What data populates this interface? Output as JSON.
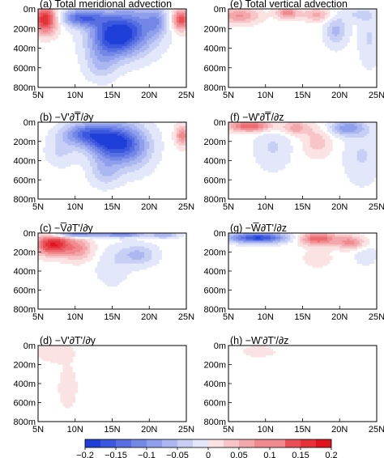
{
  "chart_data": {
    "type": "heatmap",
    "x_ticks": [
      "5N",
      "10N",
      "15N",
      "20N",
      "25N"
    ],
    "y_ticks": [
      "0m",
      "200m",
      "400m",
      "600m",
      "800m"
    ],
    "xlim": [
      5,
      25
    ],
    "ylim": [
      0,
      800
    ],
    "colorbar": {
      "ticks": [
        "-0.2",
        "-0.15",
        "-0.1",
        "-0.05",
        "0",
        "0.05",
        "0.1",
        "0.15",
        "0.2"
      ],
      "range": [
        -0.2,
        0.2
      ],
      "negative_color": "#1f3fd8",
      "positive_color": "#e0141e"
    },
    "panels": [
      {
        "title": "(a) Total meridional advection",
        "blobs": [
          {
            "lat": 15,
            "depth": 280,
            "rlat": 3.2,
            "rdep": 200,
            "amp": -0.17
          },
          {
            "lat": 11,
            "depth": 90,
            "rlat": 3.0,
            "rdep": 90,
            "amp": -0.15
          },
          {
            "lat": 18,
            "depth": 200,
            "rlat": 3.5,
            "rdep": 260,
            "amp": -0.11
          },
          {
            "lat": 21,
            "depth": 120,
            "rlat": 1.4,
            "rdep": 140,
            "amp": -0.07
          },
          {
            "lat": 13.5,
            "depth": 560,
            "rlat": 2.2,
            "rdep": 170,
            "amp": -0.06
          },
          {
            "lat": 6,
            "depth": 110,
            "rlat": 1.6,
            "rdep": 140,
            "amp": 0.19
          },
          {
            "lat": 24.3,
            "depth": 110,
            "rlat": 1.2,
            "rdep": 110,
            "amp": 0.15
          }
        ]
      },
      {
        "title": "(e) Total vertical advection",
        "blobs": [
          {
            "lat": 6.5,
            "depth": 70,
            "rlat": 2.6,
            "rdep": 80,
            "amp": 0.09
          },
          {
            "lat": 13,
            "depth": 40,
            "rlat": 1.5,
            "rdep": 60,
            "amp": 0.1
          },
          {
            "lat": 17,
            "depth": 60,
            "rlat": 2.0,
            "rdep": 70,
            "amp": 0.07
          },
          {
            "lat": 19.5,
            "depth": 220,
            "rlat": 1.5,
            "rdep": 160,
            "amp": -0.07
          },
          {
            "lat": 22.5,
            "depth": 60,
            "rlat": 2.0,
            "rdep": 60,
            "amp": -0.04
          },
          {
            "lat": 24,
            "depth": 300,
            "rlat": 1.5,
            "rdep": 300,
            "amp": -0.04
          }
        ]
      },
      {
        "title": "(b) −V'∂T̅/∂y",
        "blobs": [
          {
            "lat": 14.5,
            "depth": 200,
            "rlat": 3.2,
            "rdep": 180,
            "amp": -0.17
          },
          {
            "lat": 11,
            "depth": 120,
            "rlat": 2.8,
            "rdep": 110,
            "amp": -0.12
          },
          {
            "lat": 17.5,
            "depth": 260,
            "rlat": 3.0,
            "rdep": 240,
            "amp": -0.1
          },
          {
            "lat": 14,
            "depth": 520,
            "rlat": 2.0,
            "rdep": 150,
            "amp": -0.06
          },
          {
            "lat": 8,
            "depth": 300,
            "rlat": 2.0,
            "rdep": 160,
            "amp": -0.04
          },
          {
            "lat": 24.5,
            "depth": 140,
            "rlat": 1.0,
            "rdep": 110,
            "amp": 0.1
          }
        ]
      },
      {
        "title": "(f) −W'∂T̅/∂z",
        "blobs": [
          {
            "lat": 8,
            "depth": 40,
            "rlat": 3.0,
            "rdep": 60,
            "amp": 0.14
          },
          {
            "lat": 14,
            "depth": 60,
            "rlat": 1.8,
            "rdep": 70,
            "amp": 0.08
          },
          {
            "lat": 17,
            "depth": 200,
            "rlat": 2.0,
            "rdep": 160,
            "amp": 0.05
          },
          {
            "lat": 21,
            "depth": 60,
            "rlat": 2.5,
            "rdep": 80,
            "amp": -0.1
          },
          {
            "lat": 11,
            "depth": 260,
            "rlat": 2.5,
            "rdep": 240,
            "amp": -0.04
          },
          {
            "lat": 23,
            "depth": 350,
            "rlat": 2.5,
            "rdep": 300,
            "amp": -0.04
          }
        ]
      },
      {
        "title": "(c) −V̅∂T'/∂y",
        "blobs": [
          {
            "lat": 7,
            "depth": 120,
            "rlat": 2.4,
            "rdep": 110,
            "amp": 0.19
          },
          {
            "lat": 10.5,
            "depth": 170,
            "rlat": 2.0,
            "rdep": 120,
            "amp": 0.08
          },
          {
            "lat": 10,
            "depth": 15,
            "rlat": 3.5,
            "rdep": 30,
            "amp": -0.15
          },
          {
            "lat": 16.5,
            "depth": 15,
            "rlat": 3.0,
            "rdep": 30,
            "amp": -0.12
          },
          {
            "lat": 22,
            "depth": 20,
            "rlat": 2.0,
            "rdep": 35,
            "amp": -0.08
          },
          {
            "lat": 18.5,
            "depth": 230,
            "rlat": 2.5,
            "rdep": 110,
            "amp": -0.07
          },
          {
            "lat": 15,
            "depth": 350,
            "rlat": 2.5,
            "rdep": 220,
            "amp": -0.03
          }
        ]
      },
      {
        "title": "(g) −W̅∂T'/∂z",
        "blobs": [
          {
            "lat": 9,
            "depth": 50,
            "rlat": 4.0,
            "rdep": 55,
            "amp": -0.19
          },
          {
            "lat": 17,
            "depth": 60,
            "rlat": 2.5,
            "rdep": 65,
            "amp": 0.14
          },
          {
            "lat": 21.5,
            "depth": 100,
            "rlat": 2.0,
            "rdep": 70,
            "amp": 0.1
          },
          {
            "lat": 23.5,
            "depth": 220,
            "rlat": 1.8,
            "rdep": 120,
            "amp": -0.03
          },
          {
            "lat": 17,
            "depth": 260,
            "rlat": 2.0,
            "rdep": 100,
            "amp": 0.03
          }
        ]
      },
      {
        "title": "(d) −V'∂T'/∂y",
        "blobs": [
          {
            "lat": 7,
            "depth": 70,
            "rlat": 2.2,
            "rdep": 90,
            "amp": 0.035
          },
          {
            "lat": 9,
            "depth": 450,
            "rlat": 2.0,
            "rdep": 350,
            "amp": 0.018
          },
          {
            "lat": 16,
            "depth": 100,
            "rlat": 4.5,
            "rdep": 200,
            "amp": 0.01
          }
        ]
      },
      {
        "title": "(h) −W'∂T'/∂z",
        "blobs": [
          {
            "lat": 9,
            "depth": 60,
            "rlat": 3.0,
            "rdep": 80,
            "amp": 0.02
          },
          {
            "lat": 15,
            "depth": 150,
            "rlat": 2.5,
            "rdep": 150,
            "amp": 0.012
          }
        ]
      }
    ]
  }
}
